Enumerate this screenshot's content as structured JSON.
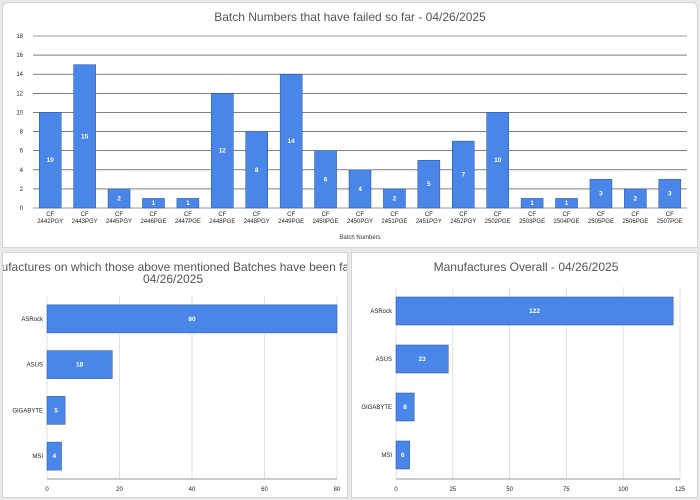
{
  "colors": {
    "bar": "#4a86e8"
  },
  "chart_data": [
    {
      "type": "bar",
      "title": "Batch Numbers that have failed so far - 04/26/2025",
      "xlabel": "Batch Numbers",
      "ylabel": "",
      "ylim": [
        0,
        18
      ],
      "yticks": [
        0,
        2,
        4,
        6,
        8,
        10,
        12,
        14,
        16,
        18
      ],
      "categories": [
        [
          "CF",
          "2442PGY"
        ],
        [
          "CF",
          "2443PGY"
        ],
        [
          "CF",
          "2445PGY"
        ],
        [
          "CF",
          "2446PGE"
        ],
        [
          "CF",
          "2447PGE"
        ],
        [
          "CF",
          "2448PGE"
        ],
        [
          "CF",
          "2448PGY"
        ],
        [
          "CF",
          "2449PGE"
        ],
        [
          "CF",
          "2450PGE"
        ],
        [
          "CF",
          "2450PGY"
        ],
        [
          "CF",
          "2451PGE"
        ],
        [
          "CF",
          "2451PGY"
        ],
        [
          "CF",
          "2452PGY"
        ],
        [
          "CF",
          "2502PGE"
        ],
        [
          "CF",
          "2503PGE"
        ],
        [
          "CF",
          "2504PGE"
        ],
        [
          "CF",
          "2505PGE"
        ],
        [
          "CF",
          "2506PGE"
        ],
        [
          "CF",
          "2507PGE"
        ]
      ],
      "values": [
        10,
        15,
        2,
        1,
        1,
        12,
        8,
        14,
        6,
        4,
        2,
        5,
        7,
        10,
        1,
        1,
        3,
        2,
        3
      ]
    },
    {
      "type": "bar",
      "orientation": "horizontal",
      "title": [
        "Manufactures on which those above mentioned Batches have been failed",
        "04/26/2025"
      ],
      "categories": [
        "ASRock",
        "ASUS",
        "GIGABYTE",
        "MSI"
      ],
      "values": [
        80,
        18,
        5,
        4
      ],
      "xlim": [
        0,
        80
      ],
      "xticks": [
        0,
        20,
        40,
        60,
        80
      ]
    },
    {
      "type": "bar",
      "orientation": "horizontal",
      "title": [
        "Manufactures Overall - 04/26/2025"
      ],
      "categories": [
        "ASRock",
        "ASUS",
        "GIGABYTE",
        "MSI"
      ],
      "values": [
        122,
        23,
        8,
        6
      ],
      "xlim": [
        0,
        125
      ],
      "xticks": [
        0,
        25,
        50,
        75,
        100,
        125
      ]
    }
  ]
}
